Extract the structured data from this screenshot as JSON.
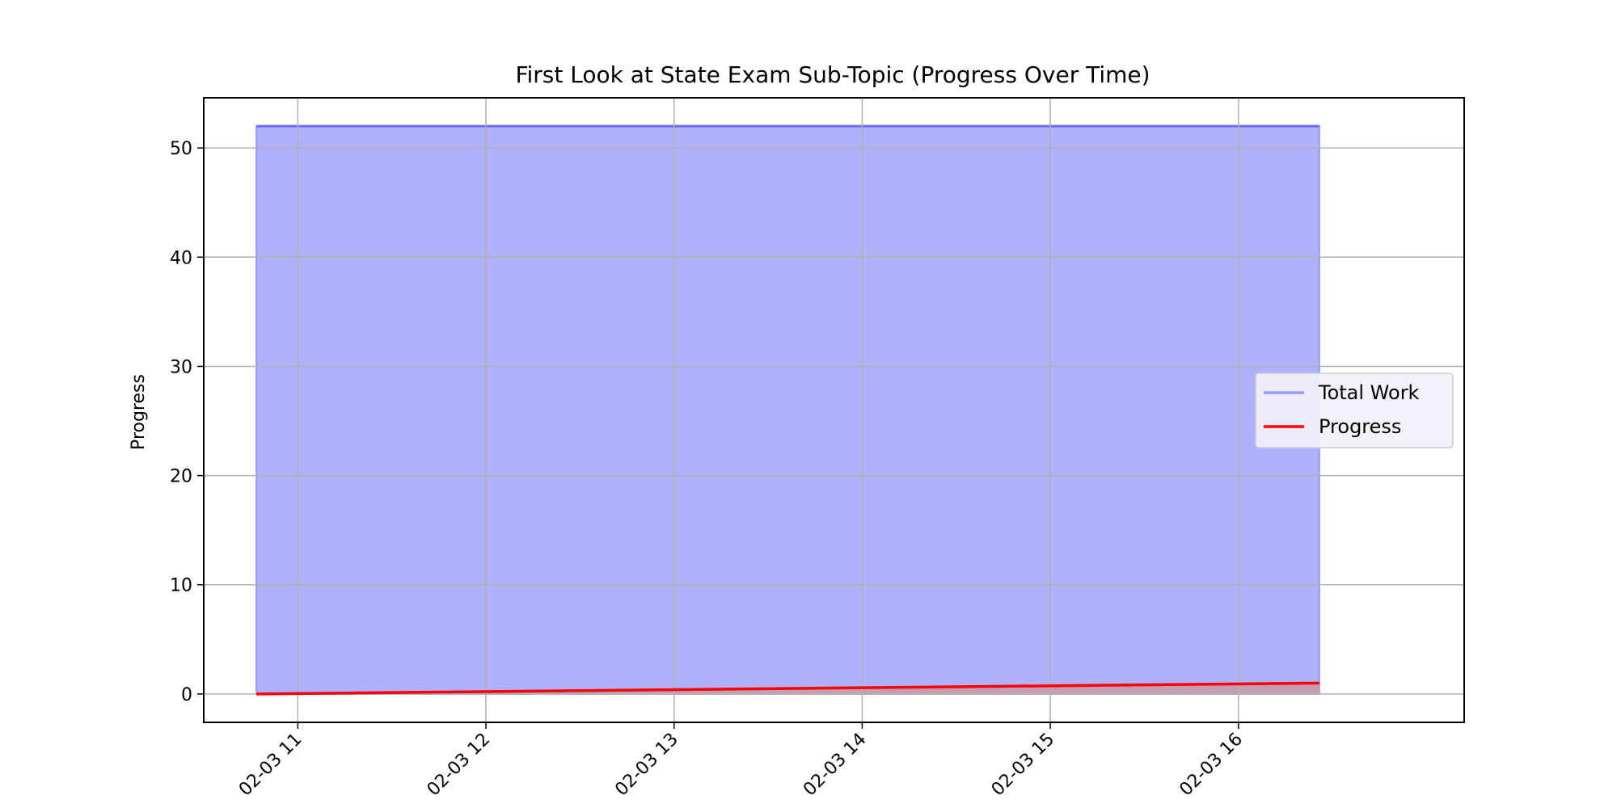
{
  "chart_data": {
    "type": "area",
    "title": "First Look at State Exam Sub-Topic (Progress Over Time)",
    "xlabel": "",
    "ylabel": "Progress",
    "x_tick_labels": [
      "02-03 11",
      "02-03 12",
      "02-03 13",
      "02-03 14",
      "02-03 15",
      "02-03 16"
    ],
    "x_tick_values": [
      11,
      12,
      13,
      14,
      15,
      16
    ],
    "xlim": [
      10.5,
      17.2
    ],
    "ylim": [
      -2.6,
      54.6
    ],
    "y_ticks": [
      0,
      10,
      20,
      30,
      40,
      50
    ],
    "grid": true,
    "legend_position": "center-right",
    "series": [
      {
        "name": "Total Work",
        "kind": "filled-area",
        "color": "#9999ff",
        "fill_color": "#b0b0fc",
        "x": [
          10.78,
          16.43
        ],
        "y": [
          52,
          52
        ]
      },
      {
        "name": "Progress",
        "kind": "line",
        "color": "#ff0000",
        "x": [
          10.78,
          16.43
        ],
        "y": [
          0,
          1
        ]
      }
    ]
  }
}
